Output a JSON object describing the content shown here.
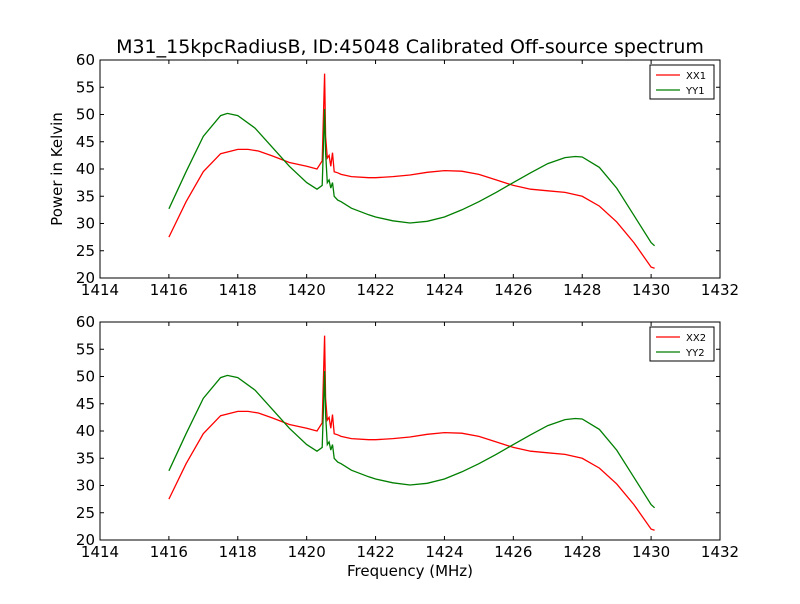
{
  "chart_data": {
    "type": "line",
    "title": "M31_15kpcRadiusB, ID:45048 Calibrated Off-source spectrum",
    "xlabel": "Frequency (MHz)",
    "ylabel": "Power in Kelvin",
    "xlim": [
      1414,
      1432
    ],
    "ylim": [
      20,
      60
    ],
    "xticks": [
      1414,
      1416,
      1418,
      1420,
      1422,
      1424,
      1426,
      1428,
      1430,
      1432
    ],
    "yticks": [
      20,
      25,
      30,
      35,
      40,
      45,
      50,
      55,
      60
    ],
    "panels": [
      {
        "series": [
          {
            "name": "XX1",
            "color": "#ff0000",
            "x": [
              1416.0,
              1416.5,
              1417.0,
              1417.5,
              1418.0,
              1418.3,
              1418.6,
              1419.0,
              1419.5,
              1420.0,
              1420.3,
              1420.45,
              1420.52,
              1420.55,
              1420.6,
              1420.65,
              1420.7,
              1420.75,
              1420.8,
              1420.9,
              1421.0,
              1421.3,
              1421.8,
              1422.0,
              1422.5,
              1423.0,
              1423.5,
              1424.0,
              1424.5,
              1425.0,
              1425.5,
              1426.0,
              1426.5,
              1427.0,
              1427.5,
              1428.0,
              1428.5,
              1429.0,
              1429.5,
              1430.0,
              1430.1
            ],
            "values": [
              27.5,
              34.0,
              39.5,
              42.8,
              43.6,
              43.6,
              43.3,
              42.4,
              41.2,
              40.5,
              40.0,
              41.5,
              57.5,
              46.0,
              42.0,
              42.5,
              40.5,
              43.0,
              39.5,
              39.3,
              39.0,
              38.6,
              38.4,
              38.4,
              38.6,
              38.9,
              39.4,
              39.7,
              39.6,
              39.0,
              38.0,
              37.0,
              36.3,
              36.0,
              35.7,
              35.0,
              33.2,
              30.3,
              26.5,
              22.0,
              21.8
            ]
          },
          {
            "name": "YY1",
            "color": "#007f00",
            "x": [
              1416.0,
              1416.5,
              1417.0,
              1417.5,
              1417.7,
              1418.0,
              1418.5,
              1419.0,
              1419.5,
              1420.0,
              1420.3,
              1420.45,
              1420.52,
              1420.55,
              1420.6,
              1420.65,
              1420.7,
              1420.75,
              1420.8,
              1420.9,
              1421.0,
              1421.3,
              1421.8,
              1422.0,
              1422.5,
              1423.0,
              1423.5,
              1424.0,
              1424.5,
              1425.0,
              1425.5,
              1426.0,
              1426.5,
              1427.0,
              1427.5,
              1427.8,
              1428.0,
              1428.5,
              1429.0,
              1429.5,
              1430.0,
              1430.1
            ],
            "values": [
              32.7,
              39.5,
              46.0,
              49.8,
              50.2,
              49.8,
              47.5,
              44.0,
              40.5,
              37.5,
              36.3,
              37.0,
              51.0,
              43.0,
              37.5,
              38.0,
              36.5,
              37.5,
              35.0,
              34.3,
              34.0,
              32.8,
              31.6,
              31.2,
              30.5,
              30.1,
              30.4,
              31.2,
              32.5,
              34.0,
              35.7,
              37.5,
              39.3,
              41.0,
              42.1,
              42.3,
              42.2,
              40.3,
              36.5,
              31.5,
              26.5,
              25.9
            ]
          }
        ]
      },
      {
        "series": [
          {
            "name": "XX2",
            "color": "#ff0000",
            "x": [
              1416.0,
              1416.5,
              1417.0,
              1417.5,
              1418.0,
              1418.3,
              1418.6,
              1419.0,
              1419.5,
              1420.0,
              1420.3,
              1420.45,
              1420.52,
              1420.55,
              1420.6,
              1420.65,
              1420.7,
              1420.75,
              1420.8,
              1420.9,
              1421.0,
              1421.3,
              1421.8,
              1422.0,
              1422.5,
              1423.0,
              1423.5,
              1424.0,
              1424.5,
              1425.0,
              1425.5,
              1426.0,
              1426.5,
              1427.0,
              1427.5,
              1428.0,
              1428.5,
              1429.0,
              1429.5,
              1430.0,
              1430.1
            ],
            "values": [
              27.5,
              34.0,
              39.5,
              42.8,
              43.6,
              43.6,
              43.3,
              42.4,
              41.2,
              40.5,
              40.0,
              41.5,
              57.5,
              46.0,
              42.0,
              42.5,
              40.5,
              43.0,
              39.5,
              39.3,
              39.0,
              38.6,
              38.4,
              38.4,
              38.6,
              38.9,
              39.4,
              39.7,
              39.6,
              39.0,
              38.0,
              37.0,
              36.3,
              36.0,
              35.7,
              35.0,
              33.2,
              30.3,
              26.5,
              22.0,
              21.8
            ]
          },
          {
            "name": "YY2",
            "color": "#007f00",
            "x": [
              1416.0,
              1416.5,
              1417.0,
              1417.5,
              1417.7,
              1418.0,
              1418.5,
              1419.0,
              1419.5,
              1420.0,
              1420.3,
              1420.45,
              1420.52,
              1420.55,
              1420.6,
              1420.65,
              1420.7,
              1420.75,
              1420.8,
              1420.9,
              1421.0,
              1421.3,
              1421.8,
              1422.0,
              1422.5,
              1423.0,
              1423.5,
              1424.0,
              1424.5,
              1425.0,
              1425.5,
              1426.0,
              1426.5,
              1427.0,
              1427.5,
              1427.8,
              1428.0,
              1428.5,
              1429.0,
              1429.5,
              1430.0,
              1430.1
            ],
            "values": [
              32.7,
              39.5,
              46.0,
              49.8,
              50.2,
              49.8,
              47.5,
              44.0,
              40.5,
              37.5,
              36.3,
              37.0,
              51.0,
              43.0,
              37.5,
              38.0,
              36.5,
              37.5,
              35.0,
              34.3,
              34.0,
              32.8,
              31.6,
              31.2,
              30.5,
              30.1,
              30.4,
              31.2,
              32.5,
              34.0,
              35.7,
              37.5,
              39.3,
              41.0,
              42.1,
              42.3,
              42.2,
              40.3,
              36.5,
              31.5,
              26.5,
              25.9
            ]
          }
        ]
      }
    ]
  }
}
